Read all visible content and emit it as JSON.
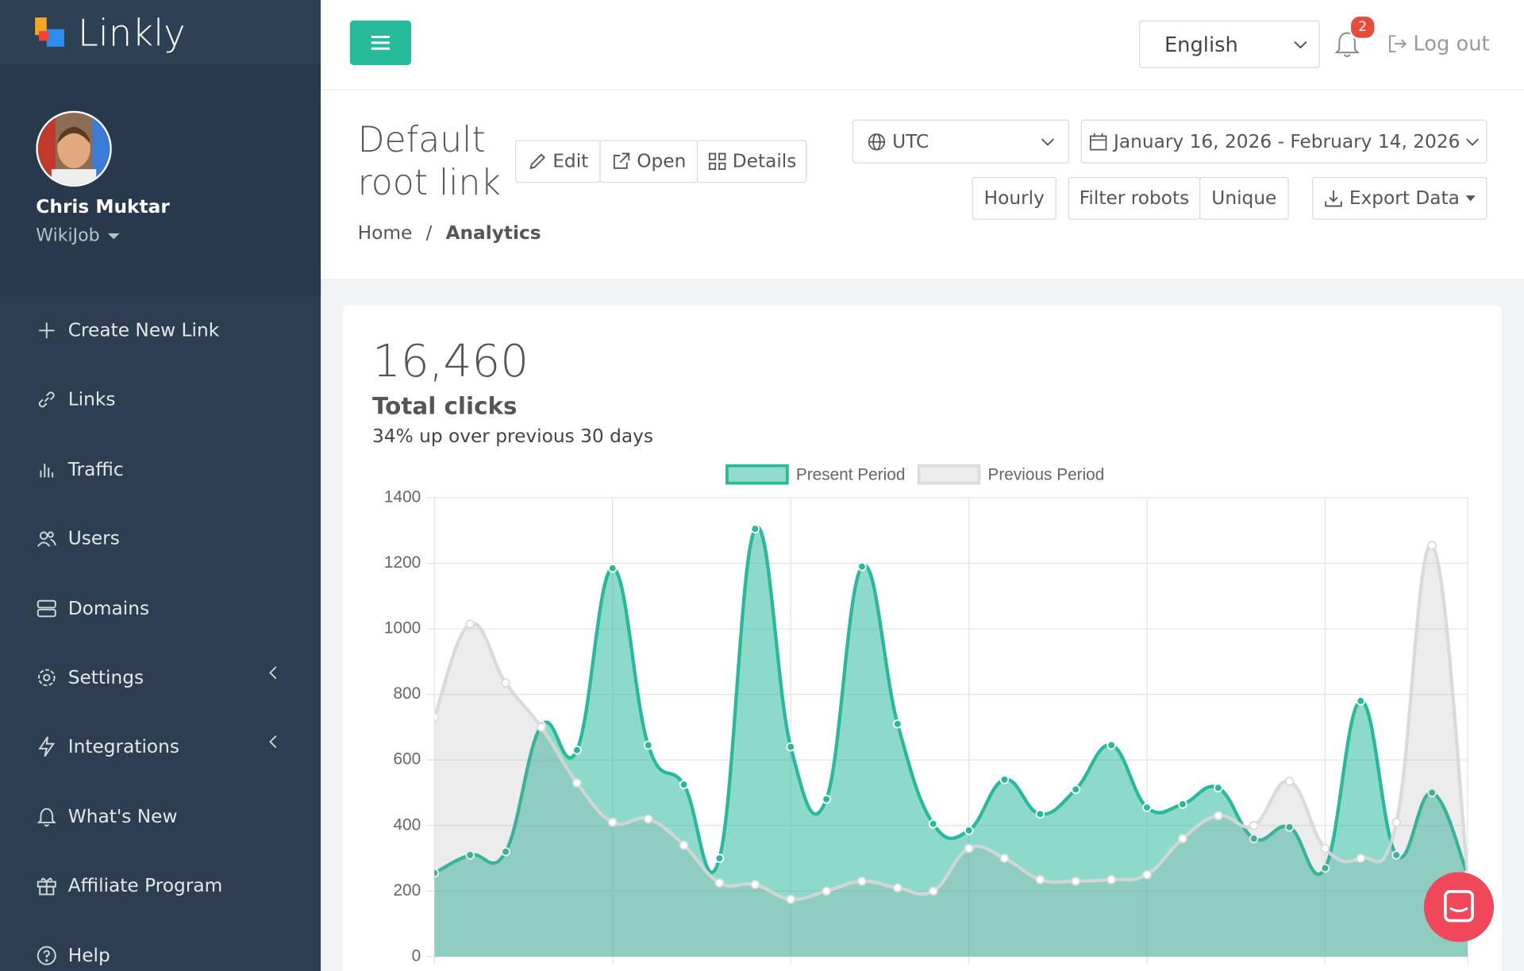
{
  "brand": {
    "name": "Linkly"
  },
  "user": {
    "name": "Chris Muktar",
    "workspace": "WikiJob"
  },
  "nav": {
    "items": [
      "Create New Link",
      "Links",
      "Traffic",
      "Users",
      "Domains",
      "Settings",
      "Integrations",
      "What's New",
      "Affiliate Program",
      "Help"
    ]
  },
  "topbar": {
    "language": "English",
    "notifications": "2",
    "logout": "Log out"
  },
  "header": {
    "title": "Default root link",
    "actions": [
      "Edit",
      "Open",
      "Details"
    ],
    "timezone": "UTC",
    "date_range": "January 16, 2026 - February 14, 2026",
    "filters": [
      "Hourly",
      "Filter robots",
      "Unique"
    ],
    "export": "Export Data",
    "breadcrumb": [
      "Home",
      "Analytics"
    ]
  },
  "summary": {
    "total": "16,460",
    "label": "Total clicks",
    "change": "34% up over previous 30 days"
  },
  "chart_data": {
    "type": "line",
    "categories": [
      null,
      null,
      null,
      null,
      null,
      null,
      null,
      null,
      null,
      null,
      null,
      null,
      null,
      null,
      null,
      null,
      null,
      null,
      null,
      null,
      null,
      null,
      null,
      null,
      null,
      null,
      null,
      null,
      null,
      null
    ],
    "series": [
      {
        "name": "Present Period",
        "color": "#26b99a",
        "values": [
          255,
          310,
          320,
          705,
          630,
          1185,
          645,
          525,
          300,
          1305,
          640,
          480,
          1190,
          710,
          405,
          385,
          540,
          435,
          510,
          645,
          455,
          465,
          515,
          360,
          395,
          270,
          780,
          310,
          500,
          250
        ]
      },
      {
        "name": "Previous Period",
        "color": "#dcdcdc",
        "values": [
          730,
          1015,
          835,
          700,
          530,
          410,
          420,
          340,
          225,
          220,
          175,
          200,
          230,
          210,
          200,
          330,
          300,
          235,
          230,
          235,
          250,
          360,
          430,
          400,
          535,
          330,
          300,
          410,
          1255,
          250
        ]
      }
    ],
    "ylim": [
      0,
      1400
    ],
    "yticks": [
      0,
      200,
      400,
      600,
      800,
      1000,
      1200,
      1400
    ],
    "grid": true,
    "legend": "top"
  }
}
